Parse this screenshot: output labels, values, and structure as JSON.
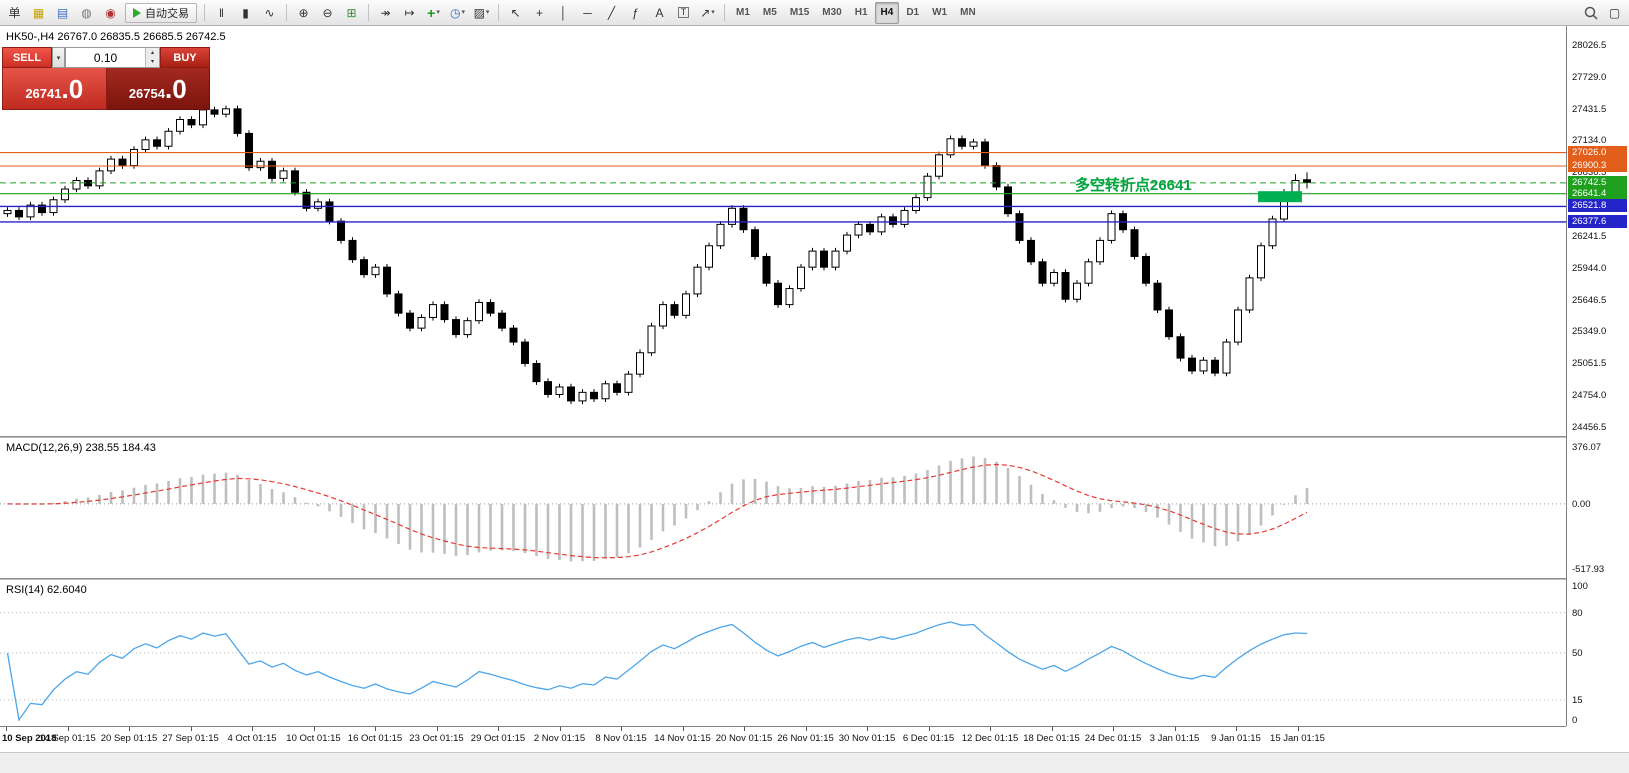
{
  "toolbar": {
    "autotrade_label": "自动交易",
    "items_left": [
      {
        "name": "new-order-button",
        "glyph": "单",
        "color": "#333333"
      },
      {
        "name": "chart-window-icon",
        "glyph": "▦",
        "color": "#c8a200"
      },
      {
        "name": "profile-icon",
        "glyph": "▤",
        "color": "#3a6ec0"
      },
      {
        "name": "info-icon",
        "glyph": "◍",
        "color": "#777777"
      },
      {
        "name": "community-icon",
        "glyph": "◉",
        "color": "#b03030"
      }
    ],
    "items_chart": [
      {
        "name": "bar-chart-icon",
        "glyph": "‖"
      },
      {
        "name": "candlestick-chart-icon",
        "glyph": "▮"
      },
      {
        "name": "line-chart-icon",
        "glyph": "∿"
      }
    ],
    "items_zoom": [
      {
        "name": "zoom-in-icon",
        "glyph": "⊕"
      },
      {
        "name": "zoom-out-icon",
        "glyph": "⊖"
      },
      {
        "name": "tile-windows-icon",
        "glyph": "⊞",
        "color": "#3a8a3a"
      }
    ],
    "items_scroll": [
      {
        "name": "auto-scroll-icon",
        "glyph": "↠"
      },
      {
        "name": "chart-shift-icon",
        "glyph": "↦"
      }
    ],
    "items_insert": [
      {
        "name": "add-indicator-icon",
        "glyph": "+",
        "color": "#1a9a1a",
        "dropdown": true
      },
      {
        "name": "period-icon",
        "glyph": "◷",
        "color": "#2a6ad0",
        "dropdown": true
      },
      {
        "name": "template-icon",
        "glyph": "▨",
        "dropdown": true
      }
    ],
    "items_tools": [
      {
        "name": "cursor-icon",
        "glyph": "↖"
      },
      {
        "name": "crosshair-icon",
        "glyph": "+"
      },
      {
        "name": "vertical-line-icon",
        "glyph": "│"
      },
      {
        "name": "horizontal-line-icon",
        "glyph": "─"
      },
      {
        "name": "trendline-icon",
        "glyph": "╱"
      },
      {
        "name": "fibonacci-icon",
        "glyph": "ƒ"
      },
      {
        "name": "text-icon",
        "glyph": "A"
      },
      {
        "name": "text-label-icon",
        "glyph": "T"
      },
      {
        "name": "arrows-icon",
        "glyph": "↗",
        "dropdown": true
      }
    ],
    "timeframes": [
      "M1",
      "M5",
      "M15",
      "M30",
      "H1",
      "H4",
      "D1",
      "W1",
      "MN"
    ],
    "active_timeframe": "H4",
    "items_right": [
      {
        "name": "search-icon"
      },
      {
        "name": "window-icon",
        "glyph": "▢"
      }
    ]
  },
  "trade_panel": {
    "sell_label": "SELL",
    "buy_label": "BUY",
    "caret": "▾",
    "volume": "0.10",
    "spin_up": "▴",
    "spin_down": "▾",
    "sell_price": {
      "main": "26741",
      "pips": ".0"
    },
    "buy_price": {
      "main": "26754",
      "pips": ".0"
    }
  },
  "chart": {
    "symbol_label": "HK50-,H4 26767.0 26835.5 26685.5 26742.5",
    "price_axis": [
      "28026.5",
      "27729.0",
      "27431.5",
      "27134.0",
      "26836.5",
      "26539.0",
      "26241.5",
      "25944.0",
      "25646.5",
      "25349.0",
      "25051.5",
      "24754.0",
      "24456.5"
    ],
    "levels": [
      {
        "value": 27026.0,
        "label": "27026.0",
        "color": "#E25E1B",
        "style": "solid"
      },
      {
        "value": 26900.3,
        "label": "26900.3",
        "color": "#E25E1B",
        "style": "solid"
      },
      {
        "value": 26742.5,
        "label": "26742.5",
        "color": "#1FA11F",
        "style": "dash"
      },
      {
        "value": 26641.4,
        "label": "26641.4",
        "color": "#1FA11F",
        "style": "solid"
      },
      {
        "value": 26521.8,
        "label": "26521.8",
        "color": "#2424C8",
        "style": "solid"
      },
      {
        "value": 26377.6,
        "label": "26377.6",
        "color": "#2424C8",
        "style": "solid"
      }
    ],
    "annotation": {
      "text": "多空转折点26641",
      "color": "#00A33E",
      "anchor_price": 26641.4
    },
    "marker": {
      "price": 26660,
      "color": "#00B050"
    }
  },
  "macd": {
    "label": "MACD(12,26,9) 238.55 184.43",
    "axis": [
      "376.07",
      "0.00",
      "-517.93"
    ],
    "histogram_color": "#BEBEBE",
    "signal_color": "#E53935"
  },
  "rsi": {
    "label": "RSI(14) 62.6040",
    "axis": [
      "100",
      "80",
      "50",
      "15",
      "0"
    ],
    "levels": [
      80,
      50,
      15
    ],
    "line_color": "#4DA6E8"
  },
  "time_axis": [
    "10 Sep 2018",
    "14 Sep 01:15",
    "20 Sep 01:15",
    "27 Sep 01:15",
    "4 Oct 01:15",
    "10 Oct 01:15",
    "16 Oct 01:15",
    "23 Oct 01:15",
    "29 Oct 01:15",
    "2 Nov 01:15",
    "8 Nov 01:15",
    "14 Nov 01:15",
    "20 Nov 01:15",
    "26 Nov 01:15",
    "30 Nov 01:15",
    "6 Dec 01:15",
    "12 Dec 01:15",
    "18 Dec 01:15",
    "24 Dec 01:15",
    "3 Jan 01:15",
    "9 Jan 01:15",
    "15 Jan 01:15"
  ],
  "chart_data": {
    "type": "candlestick",
    "title": "HK50-,H4",
    "timeframe": "H4",
    "current_ohlc": [
      26767.0,
      26835.5,
      26685.5,
      26742.5
    ],
    "price_axis_range": [
      24456.5,
      28026.5
    ],
    "bull_color": "#FFFFFF",
    "bear_color": "#000000",
    "candles": [
      [
        26450,
        26510,
        26420,
        26480
      ],
      [
        26480,
        26510,
        26390,
        26420
      ],
      [
        26420,
        26560,
        26390,
        26530
      ],
      [
        26530,
        26560,
        26430,
        26460
      ],
      [
        26460,
        26610,
        26430,
        26580
      ],
      [
        26580,
        26710,
        26550,
        26680
      ],
      [
        26680,
        26790,
        26650,
        26760
      ],
      [
        26760,
        26790,
        26680,
        26710
      ],
      [
        26710,
        26880,
        26680,
        26850
      ],
      [
        26850,
        26990,
        26820,
        26960
      ],
      [
        26960,
        26990,
        26870,
        26900
      ],
      [
        26900,
        27080,
        26870,
        27050
      ],
      [
        27050,
        27170,
        27020,
        27140
      ],
      [
        27140,
        27170,
        27050,
        27080
      ],
      [
        27080,
        27250,
        27050,
        27220
      ],
      [
        27220,
        27360,
        27190,
        27330
      ],
      [
        27330,
        27360,
        27250,
        27280
      ],
      [
        27280,
        27450,
        27250,
        27420
      ],
      [
        27420,
        27450,
        27350,
        27380
      ],
      [
        27380,
        27460,
        27350,
        27430
      ],
      [
        27430,
        27460,
        27170,
        27200
      ],
      [
        27200,
        27230,
        26850,
        26880
      ],
      [
        26880,
        26970,
        26850,
        26940
      ],
      [
        26940,
        26970,
        26750,
        26780
      ],
      [
        26780,
        26880,
        26750,
        26850
      ],
      [
        26850,
        26880,
        26620,
        26650
      ],
      [
        26650,
        26680,
        26470,
        26500
      ],
      [
        26500,
        26590,
        26470,
        26560
      ],
      [
        26560,
        26590,
        26350,
        26380
      ],
      [
        26380,
        26410,
        26170,
        26200
      ],
      [
        26200,
        26230,
        25990,
        26020
      ],
      [
        26020,
        26050,
        25850,
        25880
      ],
      [
        25880,
        25980,
        25850,
        25950
      ],
      [
        25950,
        25980,
        25670,
        25700
      ],
      [
        25700,
        25730,
        25490,
        25520
      ],
      [
        25520,
        25550,
        25350,
        25380
      ],
      [
        25380,
        25510,
        25350,
        25480
      ],
      [
        25480,
        25630,
        25450,
        25600
      ],
      [
        25600,
        25630,
        25430,
        25460
      ],
      [
        25460,
        25490,
        25290,
        25320
      ],
      [
        25320,
        25480,
        25290,
        25450
      ],
      [
        25450,
        25650,
        25420,
        25620
      ],
      [
        25620,
        25650,
        25490,
        25520
      ],
      [
        25520,
        25550,
        25350,
        25380
      ],
      [
        25380,
        25410,
        25220,
        25250
      ],
      [
        25250,
        25280,
        25020,
        25050
      ],
      [
        25050,
        25080,
        24850,
        24880
      ],
      [
        24880,
        24910,
        24730,
        24760
      ],
      [
        24760,
        24860,
        24730,
        24830
      ],
      [
        24830,
        24860,
        24670,
        24700
      ],
      [
        24700,
        24810,
        24670,
        24780
      ],
      [
        24780,
        24810,
        24690,
        24720
      ],
      [
        24720,
        24890,
        24690,
        24860
      ],
      [
        24860,
        24890,
        24750,
        24780
      ],
      [
        24780,
        24980,
        24750,
        24950
      ],
      [
        24950,
        25180,
        24920,
        25150
      ],
      [
        25150,
        25430,
        25120,
        25400
      ],
      [
        25400,
        25630,
        25370,
        25600
      ],
      [
        25600,
        25630,
        25470,
        25500
      ],
      [
        25500,
        25730,
        25470,
        25700
      ],
      [
        25700,
        25980,
        25670,
        25950
      ],
      [
        25950,
        26180,
        25920,
        26150
      ],
      [
        26150,
        26380,
        26120,
        26350
      ],
      [
        26350,
        26530,
        26320,
        26500
      ],
      [
        26500,
        26530,
        26270,
        26300
      ],
      [
        26300,
        26330,
        26020,
        26050
      ],
      [
        26050,
        26080,
        25770,
        25800
      ],
      [
        25800,
        25830,
        25570,
        25600
      ],
      [
        25600,
        25780,
        25570,
        25750
      ],
      [
        25750,
        25980,
        25720,
        25950
      ],
      [
        25950,
        26130,
        25920,
        26100
      ],
      [
        26100,
        26130,
        25920,
        25950
      ],
      [
        25950,
        26130,
        25920,
        26100
      ],
      [
        26100,
        26280,
        26070,
        26250
      ],
      [
        26250,
        26380,
        26220,
        26350
      ],
      [
        26350,
        26380,
        26250,
        26280
      ],
      [
        26280,
        26450,
        26250,
        26420
      ],
      [
        26420,
        26450,
        26320,
        26350
      ],
      [
        26350,
        26510,
        26320,
        26480
      ],
      [
        26480,
        26630,
        26450,
        26600
      ],
      [
        26600,
        26830,
        26570,
        26800
      ],
      [
        26800,
        27030,
        26770,
        27000
      ],
      [
        27000,
        27180,
        26970,
        27150
      ],
      [
        27150,
        27180,
        27050,
        27080
      ],
      [
        27080,
        27150,
        27050,
        27120
      ],
      [
        27120,
        27150,
        26870,
        26900
      ],
      [
        26900,
        26930,
        26670,
        26700
      ],
      [
        26700,
        26730,
        26420,
        26450
      ],
      [
        26450,
        26480,
        26170,
        26200
      ],
      [
        26200,
        26230,
        25970,
        26000
      ],
      [
        26000,
        26030,
        25770,
        25800
      ],
      [
        25800,
        25930,
        25770,
        25900
      ],
      [
        25900,
        25930,
        25620,
        25650
      ],
      [
        25650,
        25830,
        25620,
        25800
      ],
      [
        25800,
        26030,
        25770,
        26000
      ],
      [
        26000,
        26230,
        25970,
        26200
      ],
      [
        26200,
        26480,
        26170,
        26450
      ],
      [
        26450,
        26480,
        26270,
        26300
      ],
      [
        26300,
        26330,
        26020,
        26050
      ],
      [
        26050,
        26080,
        25770,
        25800
      ],
      [
        25800,
        25830,
        25520,
        25550
      ],
      [
        25550,
        25580,
        25270,
        25300
      ],
      [
        25300,
        25330,
        25070,
        25100
      ],
      [
        25100,
        25130,
        24950,
        24980
      ],
      [
        24980,
        25110,
        24950,
        25080
      ],
      [
        25080,
        25110,
        24930,
        24960
      ],
      [
        24960,
        25280,
        24930,
        25250
      ],
      [
        25250,
        25580,
        25220,
        25550
      ],
      [
        25550,
        25880,
        25520,
        25850
      ],
      [
        25850,
        26180,
        25820,
        26150
      ],
      [
        26150,
        26430,
        26120,
        26400
      ],
      [
        26400,
        26680,
        26370,
        26650
      ],
      [
        26650,
        26820,
        26560,
        26760
      ],
      [
        26767,
        26835.5,
        26685.5,
        26742.5
      ]
    ],
    "indicators": [
      {
        "type": "MACD",
        "params": [
          12,
          26,
          9
        ],
        "current": [
          238.55,
          184.43
        ],
        "scale": [
          -517.93,
          376.07
        ]
      },
      {
        "type": "RSI",
        "params": [
          14
        ],
        "current": 62.604,
        "scale": [
          0,
          100
        ]
      }
    ]
  }
}
